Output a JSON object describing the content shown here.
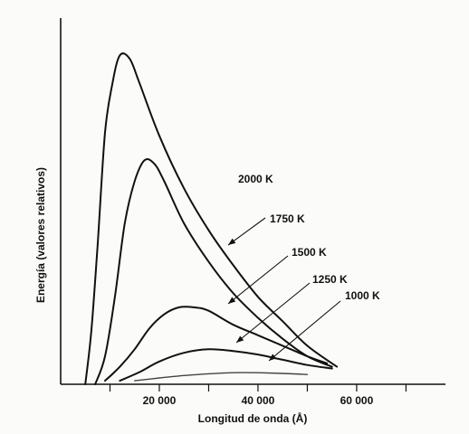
{
  "chart_data": {
    "type": "line",
    "xlabel": "Longitud de onda (Å)",
    "ylabel": "Energía (valores relativos)",
    "x_ticks": [
      {
        "value": 10000,
        "label": ""
      },
      {
        "value": 20000,
        "label": "20 000"
      },
      {
        "value": 30000,
        "label": ""
      },
      {
        "value": 40000,
        "label": "40 000"
      },
      {
        "value": 50000,
        "label": ""
      },
      {
        "value": 60000,
        "label": "60 000"
      },
      {
        "value": 70000,
        "label": ""
      }
    ],
    "xlim": [
      0,
      78000
    ],
    "ylim": [
      0,
      1.0
    ],
    "y_ticks_shown": false,
    "grid": false,
    "series": [
      {
        "name": "2000 K",
        "x": [
          5000,
          6200,
          7500,
          9000,
          10500,
          12000,
          14000,
          16000,
          20000,
          25000,
          30000,
          35000,
          40000,
          45000,
          50000,
          56000
        ],
        "y": [
          0.0,
          0.15,
          0.4,
          0.72,
          0.86,
          0.94,
          0.93,
          0.86,
          0.71,
          0.56,
          0.44,
          0.34,
          0.25,
          0.18,
          0.11,
          0.05
        ]
      },
      {
        "name": "1750 K",
        "x": [
          7000,
          9000,
          11000,
          13000,
          15000,
          17000,
          19000,
          21000,
          25000,
          30000,
          35000,
          40000,
          45000,
          50000,
          55000
        ],
        "y": [
          0.0,
          0.08,
          0.25,
          0.46,
          0.58,
          0.64,
          0.63,
          0.58,
          0.46,
          0.35,
          0.26,
          0.19,
          0.13,
          0.08,
          0.05
        ]
      },
      {
        "name": "1500 K",
        "x": [
          9000,
          12000,
          15000,
          18000,
          21000,
          24000,
          27000,
          30000,
          35000,
          40000,
          45000,
          50000,
          54000
        ],
        "y": [
          0.01,
          0.05,
          0.1,
          0.16,
          0.2,
          0.22,
          0.22,
          0.21,
          0.17,
          0.14,
          0.11,
          0.08,
          0.06
        ]
      },
      {
        "name": "1250 K",
        "x": [
          12000,
          16000,
          20000,
          25000,
          30000,
          35000,
          40000,
          45000,
          50000,
          55000
        ],
        "y": [
          0.01,
          0.035,
          0.065,
          0.09,
          0.1,
          0.095,
          0.085,
          0.07,
          0.055,
          0.045
        ]
      },
      {
        "name": "1000 K",
        "x": [
          15000,
          20000,
          25000,
          30000,
          35000,
          40000,
          45000,
          50000
        ],
        "y": [
          0.01,
          0.018,
          0.025,
          0.03,
          0.033,
          0.033,
          0.031,
          0.028
        ]
      }
    ]
  }
}
